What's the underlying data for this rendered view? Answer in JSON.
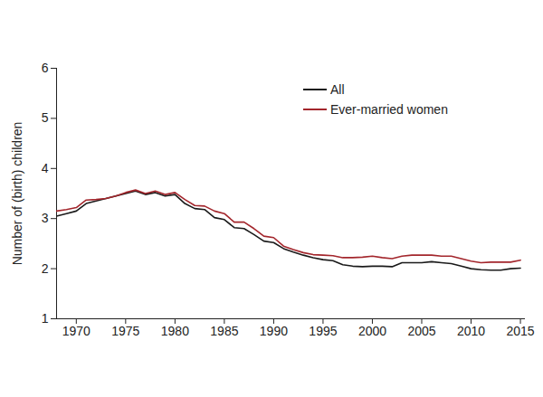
{
  "chart_data": {
    "type": "line",
    "y_label": "Number of (birth) children",
    "x": [
      1968,
      1969,
      1970,
      1971,
      1972,
      1973,
      1974,
      1975,
      1976,
      1977,
      1978,
      1979,
      1980,
      1981,
      1982,
      1983,
      1984,
      1985,
      1986,
      1987,
      1988,
      1989,
      1990,
      1991,
      1992,
      1993,
      1994,
      1995,
      1996,
      1997,
      1998,
      1999,
      2000,
      2001,
      2002,
      2003,
      2004,
      2005,
      2006,
      2007,
      2008,
      2009,
      2010,
      2011,
      2012,
      2013,
      2014,
      2015
    ],
    "series": [
      {
        "name": "All",
        "color": "#1a1a1a",
        "values": [
          3.05,
          3.1,
          3.15,
          3.3,
          3.35,
          3.4,
          3.45,
          3.5,
          3.55,
          3.48,
          3.52,
          3.45,
          3.48,
          3.3,
          3.2,
          3.18,
          3.02,
          2.98,
          2.82,
          2.8,
          2.68,
          2.55,
          2.52,
          2.4,
          2.33,
          2.27,
          2.22,
          2.18,
          2.16,
          2.08,
          2.05,
          2.04,
          2.05,
          2.05,
          2.04,
          2.12,
          2.12,
          2.12,
          2.14,
          2.12,
          2.1,
          2.05,
          2.0,
          1.98,
          1.97,
          1.97,
          2.0,
          2.01
        ]
      },
      {
        "name": "Ever-married women",
        "color": "#a3262c",
        "values": [
          3.15,
          3.18,
          3.22,
          3.37,
          3.38,
          3.4,
          3.45,
          3.52,
          3.57,
          3.5,
          3.55,
          3.48,
          3.52,
          3.38,
          3.26,
          3.25,
          3.15,
          3.1,
          2.93,
          2.93,
          2.8,
          2.65,
          2.62,
          2.45,
          2.38,
          2.32,
          2.28,
          2.27,
          2.26,
          2.22,
          2.22,
          2.23,
          2.25,
          2.22,
          2.2,
          2.25,
          2.27,
          2.27,
          2.27,
          2.25,
          2.25,
          2.2,
          2.15,
          2.12,
          2.13,
          2.13,
          2.13,
          2.17
        ]
      }
    ],
    "xlim": [
      1968,
      2015.5
    ],
    "xticks": [
      1970,
      1975,
      1980,
      1985,
      1990,
      1995,
      2000,
      2005,
      2010,
      2015
    ],
    "ylim": [
      1,
      6
    ],
    "yticks": [
      1,
      2,
      3,
      4,
      5,
      6
    ],
    "legend": "top-right"
  }
}
